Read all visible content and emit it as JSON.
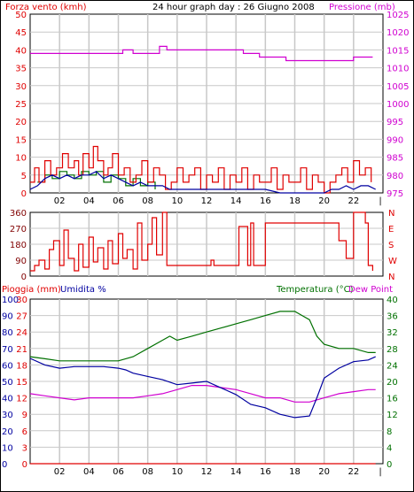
{
  "window": {
    "background": "#ffffff",
    "border": "#000000"
  },
  "colors": {
    "red": "#e00000",
    "magenta": "#d000d0",
    "blue": "#0000a0",
    "green": "#007000",
    "darkred": "#800000",
    "grid": "#c8c8c8"
  },
  "chart_data": [
    {
      "id": "wind_pressure",
      "type": "line",
      "title": "24 hour graph day : 26 Giugno 2008",
      "ylabel_left": "Forza vento (kmh)",
      "ylabel_right": "Pressione (mb)",
      "x_ticks": [
        "02",
        "04",
        "06",
        "08",
        "10",
        "12",
        "14",
        "16",
        "18",
        "20",
        "22",
        "|"
      ],
      "ylim_left": [
        0,
        50
      ],
      "yticks_left": [
        "0",
        "5",
        "10",
        "15",
        "20",
        "25",
        "30",
        "35",
        "40",
        "45",
        "50"
      ],
      "ylim_right": [
        975,
        1025
      ],
      "yticks_right": [
        "975",
        "980",
        "985",
        "990",
        "995",
        "1000",
        "1005",
        "1010",
        "1015",
        "1020",
        "1025"
      ],
      "grid": true,
      "series": [
        {
          "name": "Pressione (mb)",
          "axis": "right",
          "color": "#d000d0",
          "x": [
            0,
            6.1,
            6.3,
            7.0,
            8.5,
            8.8,
            9.3,
            10.5,
            14.5,
            15.3,
            15.6,
            16.5,
            17.4,
            19.2,
            21.0,
            22.0,
            22.4,
            23.3
          ],
          "values": [
            1014,
            1014,
            1015,
            1014,
            1014,
            1016,
            1015,
            1015,
            1014,
            1014,
            1013,
            1013,
            1012,
            1012,
            1012,
            1013,
            1013,
            1013
          ]
        },
        {
          "color": "#e00000",
          "axis": "left",
          "x": [
            0,
            0.3,
            0.6,
            1.0,
            1.4,
            1.8,
            2.2,
            2.6,
            3.0,
            3.3,
            3.6,
            4.0,
            4.3,
            4.6,
            5.0,
            5.3,
            5.6,
            6.0,
            6.4,
            6.8,
            7.2,
            7.6,
            8.0,
            8.4,
            8.8,
            9.2,
            9.6,
            10.0,
            10.4,
            10.8,
            11.2,
            11.6,
            12.0,
            12.4,
            12.8,
            13.2,
            13.6,
            14.0,
            14.4,
            14.8,
            15.2,
            15.6,
            16.0,
            16.4,
            16.8,
            17.2,
            17.6,
            18.0,
            18.4,
            18.8,
            19.2,
            19.6,
            20.0,
            20.4,
            20.8,
            21.2,
            21.6,
            22.0,
            22.4,
            22.8,
            23.2
          ],
          "values": [
            3,
            7,
            3,
            9,
            5,
            7,
            11,
            7,
            9,
            5,
            11,
            7,
            13,
            9,
            5,
            7,
            11,
            5,
            7,
            3,
            5,
            9,
            3,
            7,
            5,
            1,
            3,
            7,
            3,
            5,
            7,
            1,
            5,
            3,
            7,
            1,
            5,
            3,
            7,
            1,
            5,
            3,
            3,
            7,
            1,
            5,
            3,
            3,
            7,
            1,
            5,
            3,
            0,
            3,
            5,
            7,
            3,
            9,
            5,
            7,
            3
          ]
        },
        {
          "color": "#0000a0",
          "axis": "left",
          "x": [
            0,
            0.5,
            1.0,
            1.5,
            2.0,
            2.5,
            3.0,
            3.5,
            4.0,
            4.5,
            5.0,
            5.5,
            6.0,
            6.5,
            7.0,
            7.5,
            8.0,
            8.5,
            9.0,
            9.5,
            10.0,
            11.0,
            12.0,
            13.0,
            14.0,
            15.0,
            16.0,
            17.0,
            18.0,
            19.0,
            20.0,
            20.5,
            21.0,
            21.5,
            22.0,
            22.5,
            23.0,
            23.5
          ],
          "values": [
            1,
            2,
            4,
            5,
            4,
            5,
            4,
            5,
            5,
            6,
            4,
            5,
            4,
            3,
            2,
            3,
            2,
            2,
            2,
            1,
            1,
            1,
            1,
            1,
            1,
            1,
            1,
            0,
            0,
            0,
            0,
            1,
            1,
            2,
            1,
            2,
            2,
            1
          ]
        },
        {
          "color": "#007000",
          "axis": "left",
          "x": [
            0.5,
            1.0,
            1.5,
            2.0,
            2.5,
            3.0,
            3.5,
            4.0,
            4.5,
            5.0,
            5.5,
            6.0,
            6.5,
            7.0,
            7.5,
            8.0,
            8.5
          ],
          "values": [
            3,
            5,
            4,
            6,
            5,
            4,
            6,
            5,
            6,
            3,
            5,
            4,
            2,
            4,
            2,
            3,
            1
          ]
        }
      ]
    },
    {
      "id": "wind_direction",
      "type": "line",
      "ylabel_right": [
        "N",
        "W",
        "S",
        "E",
        "N"
      ],
      "ylim": [
        0,
        360
      ],
      "yticks_left": [
        "0",
        "90",
        "180",
        "270",
        "360"
      ],
      "grid": true,
      "series": [
        {
          "color": "#e00000",
          "x": [
            0,
            0.3,
            0.6,
            1.0,
            1.3,
            1.6,
            2.0,
            2.3,
            2.6,
            3.0,
            3.3,
            3.6,
            4.0,
            4.3,
            4.6,
            5.0,
            5.3,
            5.6,
            6.0,
            6.3,
            6.6,
            7.0,
            7.3,
            7.6,
            8.0,
            8.3,
            8.6,
            9.0,
            9.3,
            9.6,
            10.0,
            11.0,
            12.0,
            12.3,
            12.5,
            13.0,
            14.0,
            14.2,
            14.5,
            14.8,
            15.0,
            15.2,
            15.5,
            16.0,
            16.3,
            16.5,
            17.0,
            17.5,
            18.0,
            19.0,
            20.0,
            20.5,
            20.8,
            21.0,
            21.5,
            22.0,
            22.5,
            22.8,
            23.0,
            23.3
          ],
          "values": [
            30,
            60,
            90,
            40,
            150,
            200,
            60,
            260,
            100,
            30,
            180,
            50,
            220,
            80,
            160,
            40,
            200,
            70,
            240,
            100,
            150,
            40,
            300,
            90,
            180,
            330,
            120,
            360,
            60,
            60,
            60,
            60,
            60,
            90,
            60,
            60,
            60,
            280,
            280,
            60,
            300,
            60,
            60,
            300,
            300,
            300,
            300,
            300,
            300,
            300,
            300,
            300,
            300,
            200,
            100,
            360,
            360,
            300,
            60,
            30
          ]
        }
      ]
    },
    {
      "id": "temp_humidity",
      "type": "line",
      "ylabel_left_1": "Pioggia (mm)",
      "ylabel_left_2": "Umidita %",
      "ylabel_right_1": "Temperatura (°C)",
      "ylabel_right_2": "Dew Point",
      "x_ticks": [
        "02",
        "04",
        "06",
        "08",
        "10",
        "12",
        "14",
        "16",
        "18",
        "20",
        "22",
        "|"
      ],
      "ylim_humidity": [
        0,
        100
      ],
      "yticks_humidity": [
        "0",
        "10",
        "20",
        "30",
        "40",
        "50",
        "60",
        "70",
        "80",
        "90",
        "100"
      ],
      "ylim_rain": [
        0,
        30
      ],
      "yticks_rain": [
        "0",
        "3",
        "6",
        "9",
        "12",
        "15",
        "18",
        "21",
        "24",
        "27",
        "30"
      ],
      "ylim_temp": [
        0,
        40
      ],
      "yticks_temp": [
        "0",
        "4",
        "8",
        "12",
        "16",
        "20",
        "24",
        "28",
        "32",
        "36",
        "40"
      ],
      "grid": true,
      "series": [
        {
          "name": "Temperatura (°C)",
          "axis": "temp",
          "color": "#007000",
          "x": [
            0,
            1,
            2,
            3,
            4,
            5,
            6,
            7,
            8,
            9,
            9.5,
            10,
            11,
            12,
            13,
            14,
            15,
            16,
            17,
            18,
            18.5,
            19,
            19.5,
            20,
            21,
            22,
            23,
            23.5
          ],
          "values": [
            26,
            25.5,
            25,
            25,
            25,
            25,
            25,
            26,
            28,
            30,
            31,
            30,
            31,
            32,
            33,
            34,
            35,
            36,
            37,
            37,
            36,
            35,
            31,
            29,
            28,
            28,
            27,
            27
          ]
        },
        {
          "name": "Umidita %",
          "axis": "humidity",
          "color": "#0000a0",
          "x": [
            0,
            1,
            2,
            3,
            4,
            5,
            6,
            6.5,
            7,
            8,
            9,
            10,
            11,
            12,
            13,
            14,
            15,
            16,
            17,
            18,
            19,
            19.5,
            20,
            21,
            22,
            23,
            23.5
          ],
          "values": [
            64,
            60,
            58,
            59,
            59,
            59,
            58,
            57,
            55,
            53,
            51,
            48,
            49,
            50,
            46,
            42,
            36,
            34,
            30,
            28,
            29,
            40,
            52,
            58,
            62,
            63,
            65
          ]
        },
        {
          "name": "Dew Point",
          "axis": "temp",
          "color": "#d000d0",
          "x": [
            0,
            1,
            2,
            3,
            4,
            5,
            6,
            7,
            8,
            9,
            10,
            11,
            12,
            13,
            14,
            15,
            16,
            17,
            18,
            19,
            20,
            21,
            22,
            23,
            23.5
          ],
          "values": [
            17,
            16.5,
            16,
            15.5,
            16,
            16,
            16,
            16,
            16.5,
            17,
            18,
            19,
            19,
            18.5,
            18,
            17,
            16,
            16,
            15,
            15,
            16,
            17,
            17.5,
            18,
            18
          ]
        },
        {
          "name": "Pioggia (mm)",
          "axis": "rain",
          "color": "#e00000",
          "x": [
            0,
            23.5
          ],
          "values": [
            0,
            0
          ]
        }
      ]
    }
  ]
}
